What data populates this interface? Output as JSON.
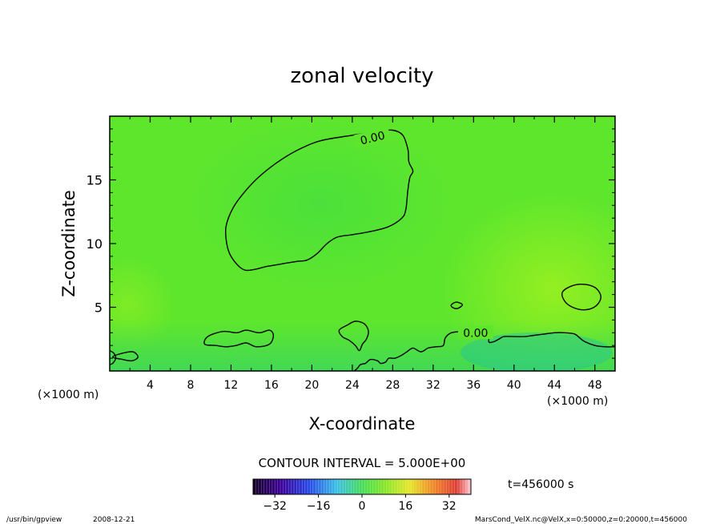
{
  "chart_data": {
    "type": "heatmap",
    "title": "zonal velocity",
    "xlabel": "X-coordinate",
    "ylabel": "Z-coordinate",
    "x_unit": "(×1000 m)",
    "y_unit": "(×1000 m)",
    "xlim": [
      0,
      50
    ],
    "ylim": [
      0,
      20
    ],
    "x_ticks": [
      4,
      8,
      12,
      16,
      20,
      24,
      28,
      32,
      36,
      40,
      44,
      48
    ],
    "y_ticks": [
      5,
      10,
      15
    ],
    "contour_interval_label": "CONTOUR INTERVAL = 5.000E+00",
    "contour_labels": [
      "0.00",
      "0.00"
    ],
    "colorbar": {
      "ticks": [
        -32,
        -16,
        0,
        16,
        32
      ],
      "range": [
        -40,
        40
      ]
    },
    "time_label": "t=456000 s",
    "zero_contours": [
      {
        "name": "upper-zero-contour",
        "closed": true,
        "points": [
          [
            11.5,
            11.3
          ],
          [
            12.2,
            12.8
          ],
          [
            13.5,
            14.2
          ],
          [
            15,
            15.4
          ],
          [
            17,
            16.6
          ],
          [
            19,
            17.5
          ],
          [
            21,
            18.1
          ],
          [
            24,
            18.5
          ],
          [
            26.5,
            18.8
          ],
          [
            28,
            18.9
          ],
          [
            29,
            18.5
          ],
          [
            29.5,
            17.4
          ],
          [
            29.6,
            16.4
          ],
          [
            30,
            15.7
          ],
          [
            29.7,
            15.2
          ],
          [
            29.5,
            14.2
          ],
          [
            29.3,
            12.7
          ],
          [
            28.9,
            12
          ],
          [
            27.5,
            11.3
          ],
          [
            25.5,
            10.9
          ],
          [
            24,
            10.7
          ],
          [
            22.5,
            10.5
          ],
          [
            21.5,
            10
          ],
          [
            20.5,
            9.2
          ],
          [
            19.5,
            8.7
          ],
          [
            18.5,
            8.6
          ],
          [
            17,
            8.4
          ],
          [
            15.5,
            8.2
          ],
          [
            14.5,
            8.0
          ],
          [
            13.5,
            7.9
          ],
          [
            12.8,
            8.2
          ],
          [
            12,
            9.0
          ],
          [
            11.6,
            9.9
          ]
        ]
      },
      {
        "name": "right-low-contour",
        "closed": false,
        "points": [
          [
            50,
            1.9
          ],
          [
            49,
            1.9
          ],
          [
            48,
            2.0
          ],
          [
            47,
            2.3
          ],
          [
            46.5,
            2.6
          ],
          [
            46,
            2.9
          ],
          [
            45,
            3.0
          ],
          [
            44,
            3.0
          ],
          [
            43,
            2.9
          ],
          [
            42,
            2.8
          ],
          [
            41,
            2.7
          ],
          [
            40,
            2.7
          ],
          [
            39,
            2.7
          ],
          [
            38.5,
            2.5
          ],
          [
            38,
            2.3
          ],
          [
            37.5,
            2.3
          ],
          [
            37.5,
            3.1
          ],
          [
            36,
            3.2
          ],
          [
            34.8,
            3.1
          ],
          [
            33.8,
            3.0
          ],
          [
            33.2,
            2.6
          ],
          [
            33,
            2.0
          ],
          [
            32.3,
            1.9
          ],
          [
            31.5,
            1.8
          ],
          [
            30.8,
            1.5
          ],
          [
            30,
            1.8
          ],
          [
            29.4,
            1.5
          ],
          [
            28.8,
            1.2
          ],
          [
            28.2,
            1.0
          ],
          [
            27.6,
            1.0
          ],
          [
            27.3,
            0.7
          ],
          [
            26.8,
            0.6
          ],
          [
            26.5,
            0.8
          ],
          [
            25.8,
            0.9
          ],
          [
            25.3,
            0.6
          ],
          [
            24.8,
            0.5
          ],
          [
            24.5,
            0.2
          ],
          [
            24.2,
            0
          ]
        ]
      },
      {
        "name": "blob-12-contour",
        "closed": true,
        "points": [
          [
            9.4,
            2.1
          ],
          [
            9.7,
            2.7
          ],
          [
            11.2,
            3.1
          ],
          [
            12.6,
            3.0
          ],
          [
            13.5,
            3.2
          ],
          [
            14.8,
            3.0
          ],
          [
            15.8,
            3.2
          ],
          [
            16.2,
            2.8
          ],
          [
            15.8,
            2.1
          ],
          [
            14.5,
            1.9
          ],
          [
            13.5,
            2.2
          ],
          [
            12.5,
            2.0
          ],
          [
            11.5,
            1.9
          ],
          [
            10.5,
            2.0
          ]
        ]
      },
      {
        "name": "blob-25-contour",
        "closed": true,
        "points": [
          [
            22.7,
            3.2
          ],
          [
            23.5,
            3.6
          ],
          [
            24.3,
            3.9
          ],
          [
            25.2,
            3.7
          ],
          [
            25.6,
            3.1
          ],
          [
            25.4,
            2.5
          ],
          [
            25.0,
            2.1
          ],
          [
            24.7,
            1.6
          ],
          [
            24.3,
            2.0
          ],
          [
            23.7,
            2.4
          ],
          [
            23.0,
            2.7
          ]
        ]
      },
      {
        "name": "blob-46-contour",
        "closed": true,
        "points": [
          [
            44.8,
            6.2
          ],
          [
            45.8,
            6.7
          ],
          [
            47.0,
            6.8
          ],
          [
            48.1,
            6.5
          ],
          [
            48.6,
            5.8
          ],
          [
            48.1,
            5.1
          ],
          [
            47.0,
            4.8
          ],
          [
            45.8,
            5.0
          ],
          [
            45.0,
            5.5
          ]
        ]
      },
      {
        "name": "blob-1-contour",
        "closed": true,
        "points": [
          [
            0.3,
            1.1
          ],
          [
            1.3,
            1.4
          ],
          [
            2.3,
            1.5
          ],
          [
            2.8,
            1.1
          ],
          [
            2.2,
            0.8
          ],
          [
            1.3,
            0.9
          ]
        ]
      },
      {
        "name": "blob-34-contour",
        "closed": true,
        "points": [
          [
            33.8,
            5.2
          ],
          [
            34.3,
            5.4
          ],
          [
            34.9,
            5.2
          ],
          [
            34.4,
            4.9
          ],
          [
            33.9,
            5.0
          ]
        ]
      },
      {
        "name": "left-edge-contour",
        "closed": false,
        "points": [
          [
            0,
            1.6
          ],
          [
            0.4,
            1.4
          ],
          [
            0.6,
            1.0
          ],
          [
            0.3,
            0.6
          ],
          [
            0,
            0.5
          ]
        ]
      }
    ]
  },
  "footer": {
    "program": "/usr/bin/gpview",
    "date": "2008-12-21",
    "source": "MarsCond_VelX.nc@VelX,x=0:50000,z=0:20000,t=456000"
  }
}
